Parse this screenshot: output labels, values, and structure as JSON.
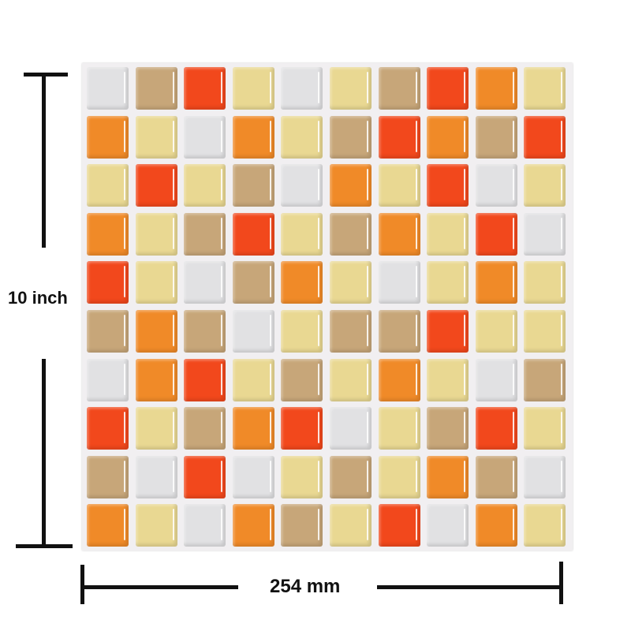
{
  "palette": {
    "W": "#e1e1e3",
    "T": "#c7a679",
    "R": "#f2481c",
    "Y": "#e9d892",
    "O": "#f08a28"
  },
  "tiles": [
    [
      "W",
      "T",
      "R",
      "Y",
      "W",
      "Y",
      "T",
      "R",
      "O",
      "Y"
    ],
    [
      "O",
      "Y",
      "W",
      "O",
      "Y",
      "T",
      "R",
      "O",
      "T",
      "R"
    ],
    [
      "Y",
      "R",
      "Y",
      "T",
      "W",
      "O",
      "Y",
      "R",
      "W",
      "Y"
    ],
    [
      "O",
      "Y",
      "T",
      "R",
      "Y",
      "T",
      "O",
      "Y",
      "R",
      "W"
    ],
    [
      "R",
      "Y",
      "W",
      "T",
      "O",
      "Y",
      "W",
      "Y",
      "O",
      "Y"
    ],
    [
      "T",
      "O",
      "T",
      "W",
      "Y",
      "T",
      "T",
      "R",
      "Y",
      "Y"
    ],
    [
      "W",
      "O",
      "R",
      "Y",
      "T",
      "Y",
      "O",
      "Y",
      "W",
      "T"
    ],
    [
      "R",
      "Y",
      "T",
      "O",
      "R",
      "W",
      "Y",
      "T",
      "R",
      "Y"
    ],
    [
      "T",
      "W",
      "R",
      "W",
      "Y",
      "T",
      "Y",
      "O",
      "T",
      "W"
    ],
    [
      "O",
      "Y",
      "W",
      "O",
      "T",
      "Y",
      "R",
      "W",
      "O",
      "Y"
    ]
  ],
  "dimensions": {
    "height_label": "10 inch",
    "width_label": "254 mm"
  }
}
